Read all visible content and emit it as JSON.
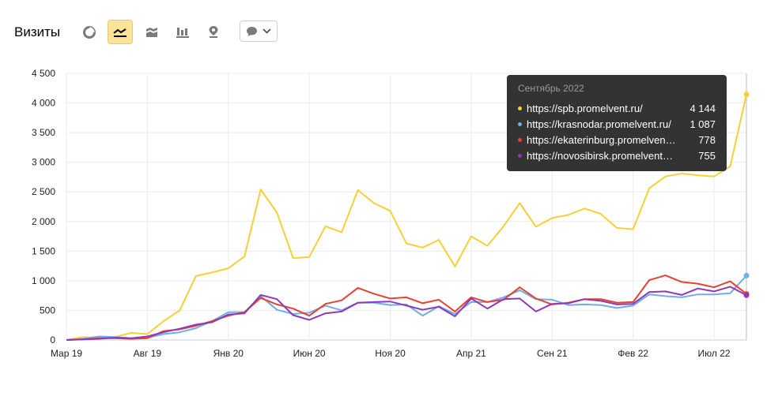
{
  "header": {
    "title": "Визиты",
    "tools": [
      {
        "name": "pie-chart-icon",
        "active": false
      },
      {
        "name": "line-chart-icon",
        "active": true
      },
      {
        "name": "area-chart-icon",
        "active": false
      },
      {
        "name": "bar-chart-icon",
        "active": false
      },
      {
        "name": "map-pin-icon",
        "active": false
      }
    ],
    "dropdown_icon": "speech-bubble-icon"
  },
  "colors": {
    "spb": "#f7cf36",
    "krasnodar": "#6daeeb",
    "ekaterinburg": "#e8412f",
    "novosibirsk": "#8f3ab4",
    "active_tool": "#fbe39a",
    "tooltip_bg": "#333333"
  },
  "tooltip": {
    "title": "Сентябрь 2022",
    "rows": [
      {
        "label": "https://spb.promelvent.ru/",
        "value": "4 144",
        "color": "#f7cf36"
      },
      {
        "label": "https://krasnodar.promelvent.ru/",
        "value": "1 087",
        "color": "#6daeeb"
      },
      {
        "label": "https://ekaterinburg.promelven…",
        "value": "778",
        "color": "#e8412f"
      },
      {
        "label": "https://novosibirsk.promelvent…",
        "value": "755",
        "color": "#8f3ab4"
      }
    ]
  },
  "chart_data": {
    "type": "line",
    "x": [
      "Мар 19",
      "Апр 19",
      "Май 19",
      "Июн 19",
      "Июл 19",
      "Авг 19",
      "Сен 19",
      "Окт 19",
      "Ноя 19",
      "Дек 19",
      "Янв 20",
      "Фев 20",
      "Мар 20",
      "Апр 20",
      "Май 20",
      "Июн 20",
      "Июл 20",
      "Авг 20",
      "Сен 20",
      "Окт 20",
      "Ноя 20",
      "Дек 20",
      "Янв 21",
      "Фев 21",
      "Мар 21",
      "Апр 21",
      "Май 21",
      "Июн 21",
      "Июл 21",
      "Авг 21",
      "Сен 21",
      "Окт 21",
      "Ноя 21",
      "Дек 21",
      "Янв 22",
      "Фев 22",
      "Мар 22",
      "Апр 22",
      "Май 22",
      "Июн 22",
      "Июл 22",
      "Авг 22",
      "Сен 22"
    ],
    "x_tick_labels": [
      "Мар 19",
      "Авг 19",
      "Янв 20",
      "Июн 20",
      "Ноя 20",
      "Апр 21",
      "Сен 21",
      "Фев 22",
      "Июл 22"
    ],
    "x_tick_index": [
      0,
      5,
      10,
      15,
      20,
      25,
      30,
      35,
      40
    ],
    "y_ticks": [
      "0",
      "500",
      "1 000",
      "1 500",
      "2 000",
      "2 500",
      "3 000",
      "3 500",
      "4 000",
      "4 500"
    ],
    "ylim": [
      0,
      4500
    ],
    "grid": true,
    "series": [
      {
        "key": "spb",
        "values": [
          0,
          50,
          30,
          50,
          120,
          100,
          320,
          500,
          1080,
          1140,
          1210,
          1410,
          2540,
          2150,
          1380,
          1400,
          1920,
          1820,
          2530,
          2310,
          2180,
          1630,
          1560,
          1690,
          1240,
          1750,
          1590,
          1920,
          2310,
          1910,
          2060,
          2110,
          2220,
          2130,
          1890,
          1870,
          2560,
          2760,
          2810,
          2780,
          2760,
          2930,
          4144
        ]
      },
      {
        "key": "krasnodar",
        "values": [
          0,
          20,
          60,
          50,
          30,
          40,
          100,
          130,
          200,
          320,
          470,
          470,
          740,
          510,
          440,
          460,
          580,
          500,
          630,
          630,
          590,
          600,
          410,
          570,
          440,
          640,
          640,
          720,
          840,
          690,
          680,
          590,
          600,
          590,
          540,
          580,
          770,
          740,
          720,
          770,
          770,
          790,
          1087
        ]
      },
      {
        "key": "ekaterinburg",
        "values": [
          0,
          10,
          30,
          30,
          20,
          30,
          150,
          180,
          240,
          320,
          410,
          470,
          710,
          600,
          530,
          410,
          610,
          670,
          880,
          780,
          700,
          720,
          620,
          680,
          480,
          720,
          640,
          680,
          890,
          700,
          600,
          630,
          690,
          690,
          630,
          640,
          1010,
          1090,
          980,
          950,
          890,
          990,
          778
        ]
      },
      {
        "key": "novosibirsk",
        "values": [
          0,
          10,
          20,
          40,
          30,
          60,
          130,
          190,
          260,
          300,
          430,
          450,
          760,
          690,
          420,
          340,
          450,
          480,
          630,
          640,
          650,
          580,
          510,
          560,
          400,
          700,
          530,
          690,
          700,
          480,
          610,
          620,
          690,
          660,
          600,
          610,
          810,
          820,
          760,
          870,
          820,
          900,
          755
        ]
      }
    ]
  }
}
